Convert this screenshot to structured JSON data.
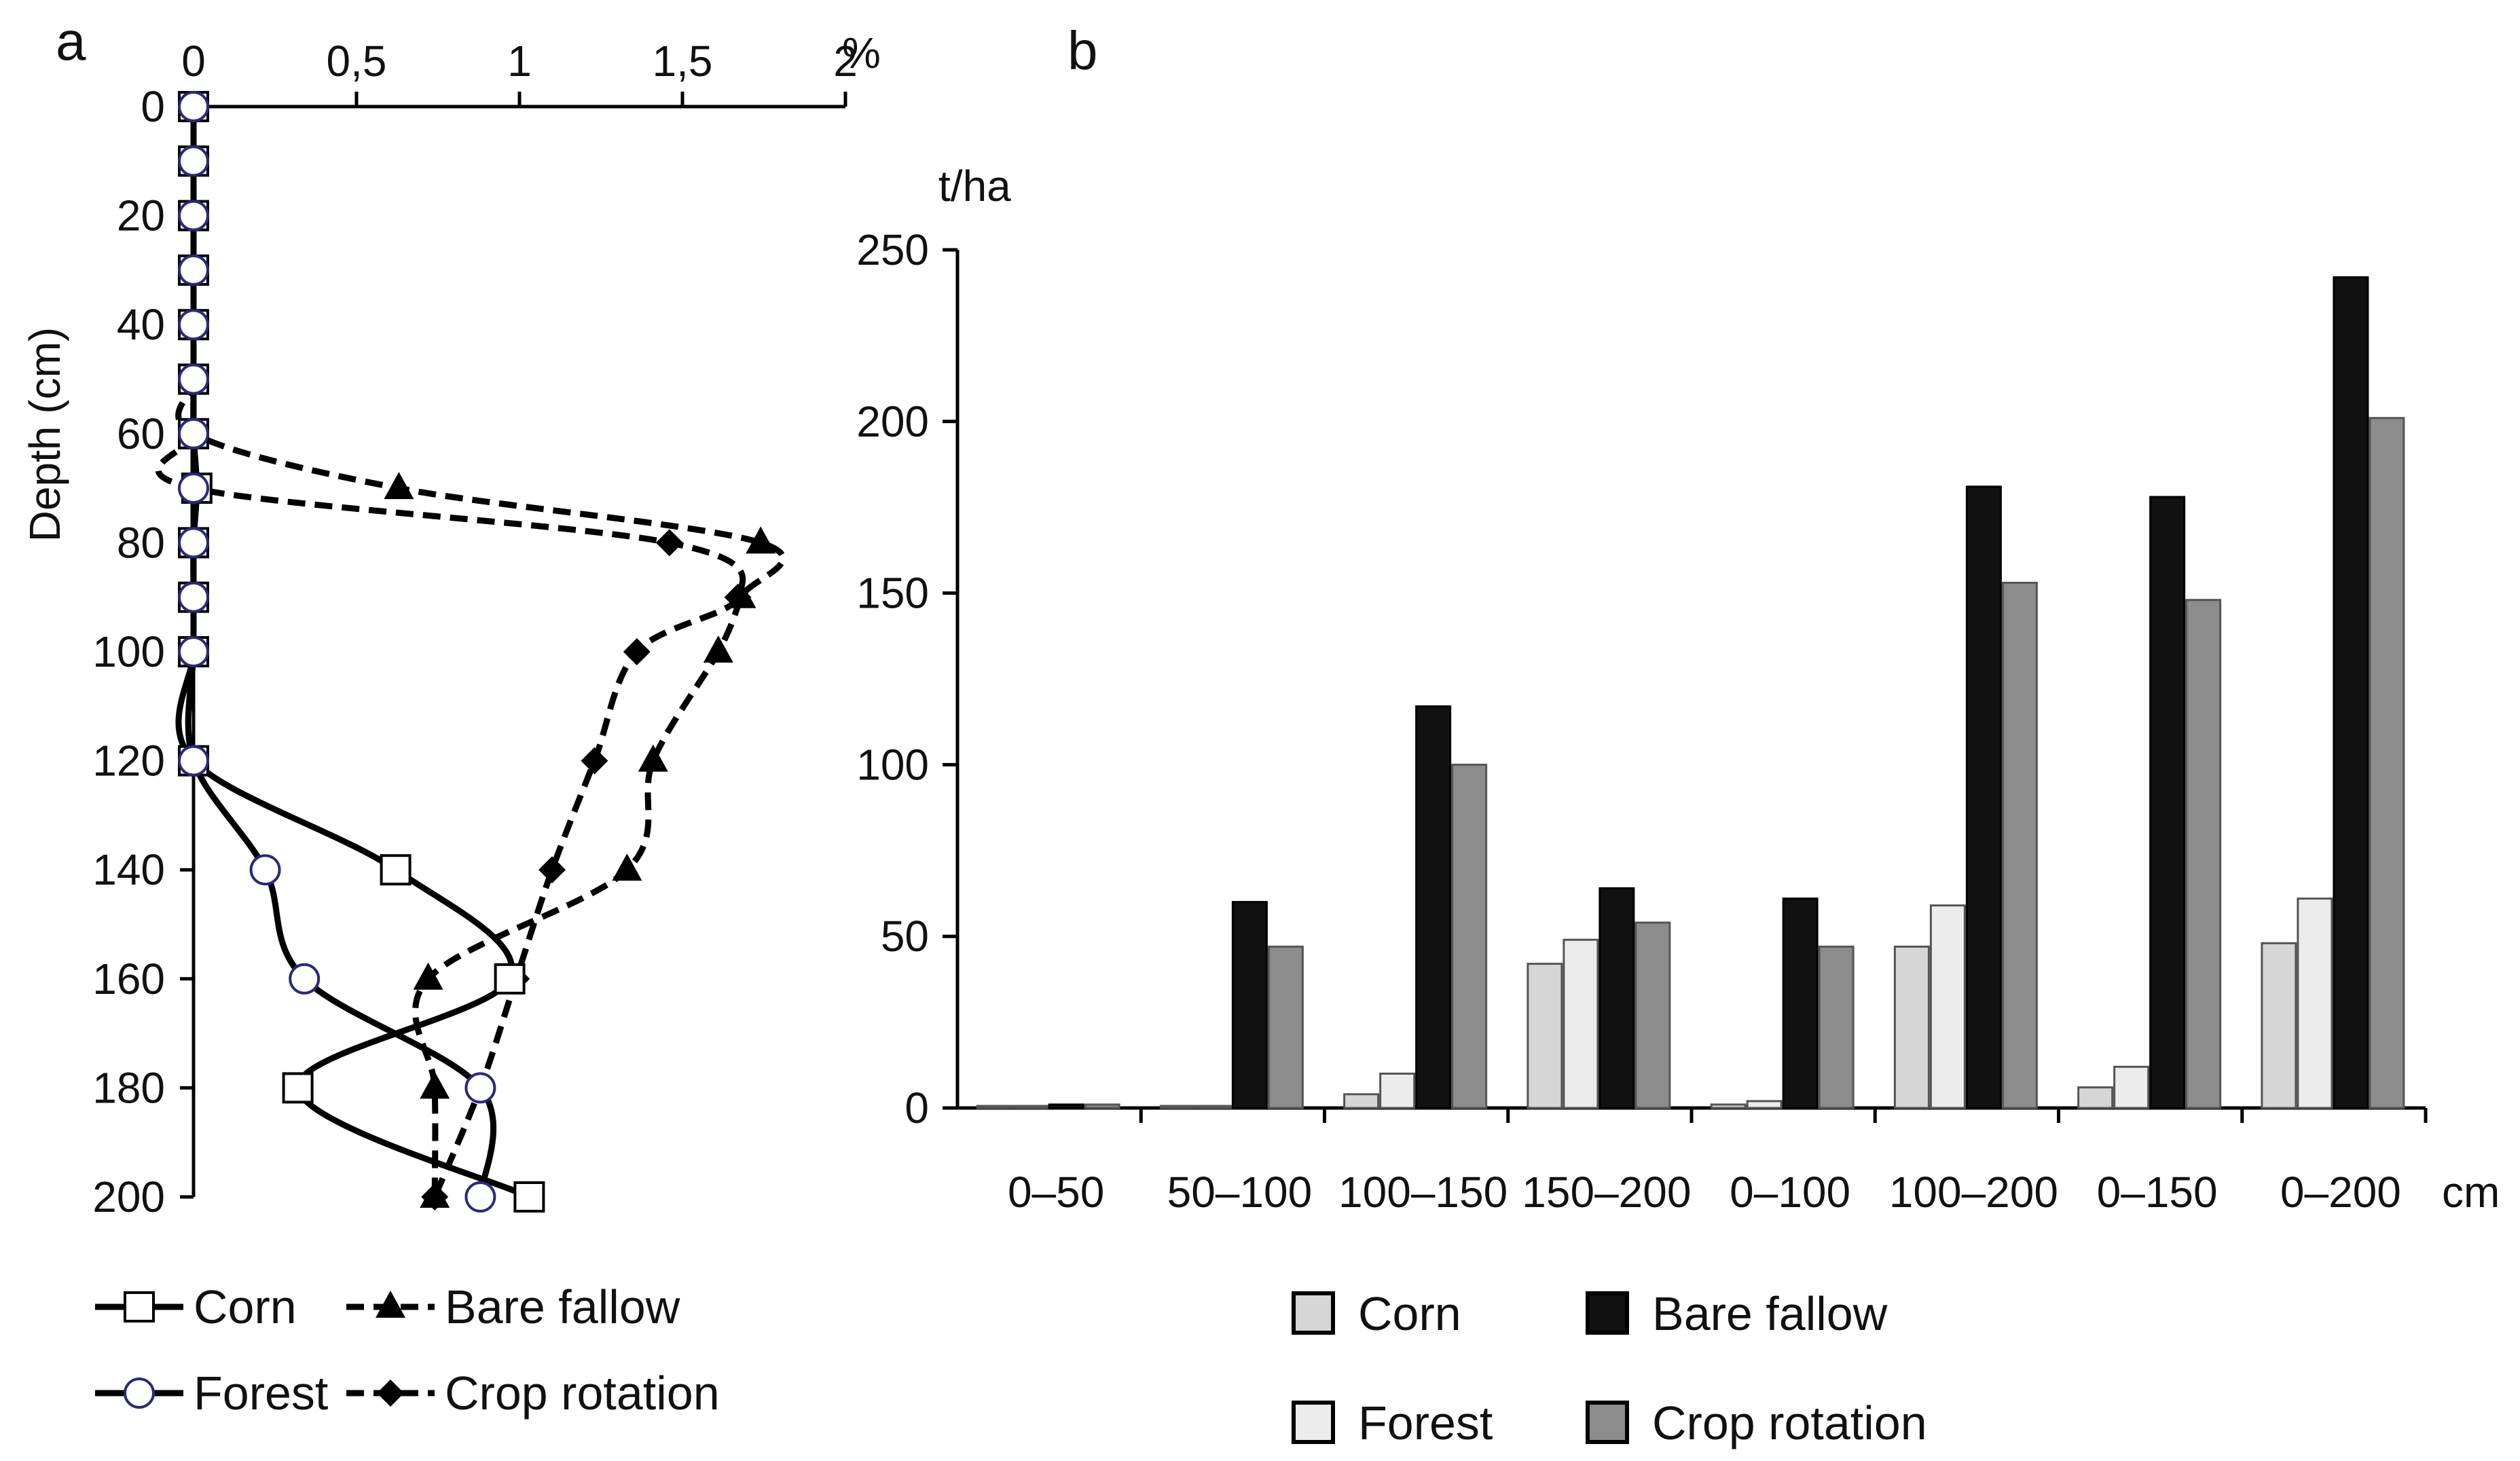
{
  "colors": {
    "axis": "#000000",
    "corn": "#d6d6d6",
    "forest": "#ececec",
    "bare_fallow": "#111111",
    "crop_rotation": "#8c8c8c",
    "forest_marker": "#2a2a7a"
  },
  "chart_data": [
    {
      "panel": "a",
      "type": "line",
      "orientation": "depth-profile",
      "xlabel": "%",
      "ylabel": "Depth (cm)",
      "xlim": [
        0,
        2
      ],
      "ylim": [
        0,
        200
      ],
      "x_ticks": [
        "0",
        "0,5",
        "1",
        "1,5",
        "2"
      ],
      "y_ticks": [
        "0",
        "20",
        "40",
        "60",
        "80",
        "100",
        "120",
        "140",
        "160",
        "180",
        "200"
      ],
      "x_unit_label": "%",
      "series": [
        {
          "name": "Corn",
          "style": "solid",
          "marker": "open-square",
          "depth": [
            0,
            10,
            20,
            30,
            40,
            50,
            60,
            70,
            80,
            90,
            100,
            120,
            140,
            160,
            180,
            200
          ],
          "values": [
            0,
            0,
            0,
            0,
            0,
            0,
            0,
            0.01,
            0,
            0,
            0,
            0,
            0.62,
            0.97,
            0.32,
            1.03
          ]
        },
        {
          "name": "Forest",
          "style": "solid",
          "marker": "open-circle",
          "depth": [
            0,
            10,
            20,
            30,
            40,
            50,
            60,
            70,
            80,
            90,
            100,
            120,
            140,
            160,
            180,
            200
          ],
          "values": [
            0,
            0,
            0,
            0,
            0,
            0,
            0,
            0,
            0,
            0,
            0,
            0,
            0.22,
            0.34,
            0.88,
            0.88
          ]
        },
        {
          "name": "Bare fallow",
          "style": "dashed",
          "marker": "filled-triangle",
          "depth": [
            0,
            10,
            20,
            30,
            40,
            50,
            60,
            70,
            80,
            90,
            100,
            120,
            140,
            160,
            180,
            200
          ],
          "values": [
            0,
            0,
            0,
            0,
            0,
            0,
            0,
            0.63,
            1.74,
            1.68,
            1.61,
            1.41,
            1.33,
            0.72,
            0.74,
            0.74
          ]
        },
        {
          "name": "Crop rotation",
          "style": "dashed",
          "marker": "filled-diamond",
          "depth": [
            0,
            10,
            20,
            30,
            40,
            50,
            60,
            70,
            80,
            90,
            100,
            120,
            140,
            160,
            180,
            200
          ],
          "values": [
            0,
            0,
            0,
            0,
            0,
            0,
            0,
            0,
            1.46,
            1.67,
            1.36,
            1.23,
            1.1,
            0.99,
            0.88,
            0.74
          ]
        }
      ],
      "legend": {
        "placement": "bottom",
        "entries": [
          "Corn",
          "Bare fallow",
          "Forest",
          "Crop rotation"
        ]
      }
    },
    {
      "panel": "b",
      "type": "bar",
      "ylabel": "t/ha",
      "xlabel": "cm",
      "ylim": [
        0,
        250
      ],
      "y_ticks": [
        "0",
        "50",
        "100",
        "150",
        "200",
        "250"
      ],
      "categories": [
        "0–50",
        "50–100",
        "100–150",
        "150–200",
        "0–100",
        "100–200",
        "0–150",
        "0–200"
      ],
      "series": [
        {
          "name": "Corn",
          "values": [
            0.5,
            0.5,
            4,
            42,
            1,
            47,
            6,
            48
          ]
        },
        {
          "name": "Forest",
          "values": [
            0.5,
            0.5,
            10,
            49,
            2,
            59,
            12,
            61
          ]
        },
        {
          "name": "Bare fallow",
          "values": [
            1,
            60,
            117,
            64,
            61,
            181,
            178,
            242
          ]
        },
        {
          "name": "Crop rotation",
          "values": [
            1,
            47,
            100,
            54,
            47,
            153,
            148,
            201
          ]
        }
      ],
      "legend": {
        "placement": "bottom",
        "entries": [
          "Corn",
          "Bare fallow",
          "Forest",
          "Crop rotation"
        ]
      }
    }
  ]
}
